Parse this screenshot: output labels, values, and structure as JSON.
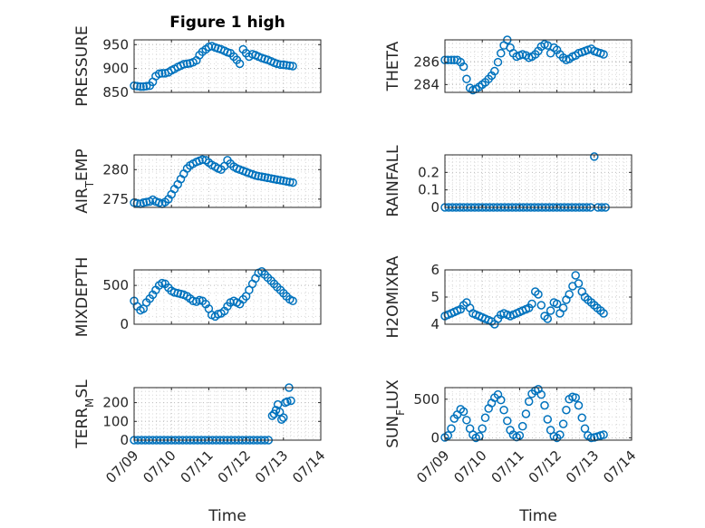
{
  "figure_title": "Figure 1 high",
  "colors": {
    "series": "#0072BD",
    "axes": "#262626",
    "grid": "#bfbfbf"
  },
  "chart_data": [
    {
      "type": "scatter",
      "id": "pressure",
      "title": "Figure 1 high",
      "ylabel": "PRESSURE",
      "xlabel": "",
      "xlim": [
        0,
        5
      ],
      "xticks": [
        0,
        1,
        2,
        3,
        4,
        5
      ],
      "xticklabels": [],
      "ylim": [
        850,
        960
      ],
      "yticks": [
        850,
        900,
        950
      ],
      "yticklabels": [
        "850",
        "900",
        "950"
      ],
      "grid": true,
      "x": [
        0.0,
        0.08,
        0.17,
        0.25,
        0.33,
        0.42,
        0.5,
        0.58,
        0.67,
        0.75,
        0.83,
        0.92,
        1.0,
        1.08,
        1.17,
        1.25,
        1.33,
        1.42,
        1.5,
        1.58,
        1.67,
        1.75,
        1.83,
        1.92,
        2.0,
        2.08,
        2.17,
        2.25,
        2.33,
        2.42,
        2.5,
        2.58,
        2.67,
        2.75,
        2.83,
        2.92,
        3.0,
        3.08,
        3.17,
        3.25,
        3.33,
        3.42,
        3.5,
        3.58,
        3.67,
        3.75,
        3.83,
        3.92,
        4.0,
        4.08,
        4.17,
        4.25
      ],
      "y": [
        864,
        863,
        862,
        862,
        863,
        864,
        872,
        884,
        889,
        890,
        890,
        892,
        896,
        899,
        903,
        906,
        909,
        910,
        911,
        913,
        917,
        928,
        935,
        940,
        945,
        947,
        944,
        942,
        940,
        937,
        934,
        932,
        925,
        918,
        910,
        940,
        932,
        925,
        930,
        928,
        925,
        922,
        920,
        918,
        915,
        912,
        910,
        908,
        908,
        907,
        906,
        905
      ]
    },
    {
      "type": "scatter",
      "id": "theta",
      "ylabel": "THETA",
      "xlabel": "",
      "xlim": [
        0,
        5
      ],
      "xticks": [
        0,
        1,
        2,
        3,
        4,
        5
      ],
      "xticklabels": [],
      "ylim": [
        283.3,
        288.0
      ],
      "yticks": [
        284,
        286
      ],
      "yticklabels": [
        "284",
        "286"
      ],
      "grid": true,
      "x": [
        0.0,
        0.08,
        0.17,
        0.25,
        0.33,
        0.42,
        0.5,
        0.58,
        0.67,
        0.75,
        0.83,
        0.92,
        1.0,
        1.08,
        1.17,
        1.25,
        1.33,
        1.42,
        1.5,
        1.58,
        1.67,
        1.75,
        1.83,
        1.92,
        2.0,
        2.08,
        2.17,
        2.25,
        2.33,
        2.42,
        2.5,
        2.58,
        2.67,
        2.75,
        2.83,
        2.92,
        3.0,
        3.08,
        3.17,
        3.25,
        3.33,
        3.42,
        3.5,
        3.58,
        3.67,
        3.75,
        3.83,
        3.92,
        4.0,
        4.08,
        4.17,
        4.25
      ],
      "y": [
        286.2,
        286.2,
        286.2,
        286.2,
        286.2,
        286.0,
        285.6,
        284.5,
        283.7,
        283.5,
        283.6,
        283.8,
        284.0,
        284.2,
        284.5,
        284.8,
        285.2,
        286.0,
        286.8,
        287.5,
        288.0,
        287.3,
        286.8,
        286.5,
        286.6,
        286.7,
        286.6,
        286.4,
        286.5,
        286.7,
        287.0,
        287.4,
        287.6,
        287.5,
        286.8,
        287.3,
        287.1,
        286.7,
        286.4,
        286.2,
        286.3,
        286.5,
        286.6,
        286.8,
        286.9,
        287.0,
        287.1,
        287.2,
        287.0,
        286.9,
        286.8,
        286.7
      ]
    },
    {
      "type": "scatter",
      "id": "air_temp",
      "ylabel": "AIR_TEMP",
      "ylabel_main": "AIR",
      "ylabel_sub": "T",
      "ylabel_rest": "EMP",
      "xlabel": "",
      "xlim": [
        0,
        5
      ],
      "xticks": [
        0,
        1,
        2,
        3,
        4,
        5
      ],
      "xticklabels": [],
      "ylim": [
        273.6,
        282.5
      ],
      "yticks": [
        275,
        280
      ],
      "yticklabels": [
        "275",
        "280"
      ],
      "grid": true,
      "x": [
        0.0,
        0.08,
        0.17,
        0.25,
        0.33,
        0.42,
        0.5,
        0.58,
        0.67,
        0.75,
        0.83,
        0.92,
        1.0,
        1.08,
        1.17,
        1.25,
        1.33,
        1.42,
        1.5,
        1.58,
        1.67,
        1.75,
        1.83,
        1.92,
        2.0,
        2.08,
        2.17,
        2.25,
        2.33,
        2.42,
        2.5,
        2.58,
        2.67,
        2.75,
        2.83,
        2.92,
        3.0,
        3.08,
        3.17,
        3.25,
        3.33,
        3.42,
        3.5,
        3.58,
        3.67,
        3.75,
        3.83,
        3.92,
        4.0,
        4.08,
        4.17,
        4.25
      ],
      "y": [
        274.4,
        274.3,
        274.2,
        274.4,
        274.5,
        274.6,
        274.9,
        274.6,
        274.4,
        274.2,
        274.5,
        275.0,
        275.8,
        276.7,
        277.5,
        278.4,
        279.3,
        280.2,
        280.7,
        281.0,
        281.3,
        281.5,
        281.7,
        281.6,
        281.2,
        280.8,
        280.5,
        280.2,
        280.0,
        280.6,
        281.6,
        281.0,
        280.5,
        280.2,
        280.0,
        279.8,
        279.6,
        279.4,
        279.2,
        279.0,
        278.9,
        278.8,
        278.7,
        278.6,
        278.5,
        278.4,
        278.3,
        278.2,
        278.1,
        278.0,
        277.9,
        277.8
      ]
    },
    {
      "type": "scatter",
      "id": "rainfall",
      "ylabel": "RAINFALL",
      "xlabel": "",
      "xlim": [
        0,
        5
      ],
      "xticks": [
        0,
        1,
        2,
        3,
        4,
        5
      ],
      "xticklabels": [],
      "ylim": [
        0,
        0.3
      ],
      "yticks": [
        0,
        0.1,
        0.2
      ],
      "yticklabels": [
        "0",
        "0.1",
        "0.2"
      ],
      "grid": true,
      "x": [
        0.0,
        0.1,
        0.2,
        0.3,
        0.4,
        0.5,
        0.6,
        0.7,
        0.8,
        0.9,
        1.0,
        1.1,
        1.2,
        1.3,
        1.4,
        1.5,
        1.6,
        1.7,
        1.8,
        1.9,
        2.0,
        2.1,
        2.2,
        2.3,
        2.4,
        2.5,
        2.6,
        2.7,
        2.8,
        2.9,
        3.0,
        3.1,
        3.2,
        3.3,
        3.4,
        3.5,
        3.6,
        3.7,
        3.8,
        3.9,
        4.0,
        4.1,
        4.2,
        4.3
      ],
      "y": [
        0,
        0,
        0,
        0,
        0,
        0,
        0,
        0,
        0,
        0,
        0,
        0,
        0,
        0,
        0,
        0,
        0,
        0,
        0,
        0,
        0,
        0,
        0,
        0,
        0,
        0,
        0,
        0,
        0,
        0,
        0,
        0,
        0,
        0,
        0,
        0,
        0,
        0,
        0,
        0,
        0.29,
        0,
        0,
        0
      ]
    },
    {
      "type": "scatter",
      "id": "mixdepth",
      "ylabel": "MIXDEPTH",
      "xlabel": "",
      "xlim": [
        0,
        5
      ],
      "xticks": [
        0,
        1,
        2,
        3,
        4,
        5
      ],
      "xticklabels": [],
      "ylim": [
        0,
        700
      ],
      "yticks": [
        0,
        500
      ],
      "yticklabels": [
        "0",
        "500"
      ],
      "grid": true,
      "x": [
        0.0,
        0.08,
        0.17,
        0.25,
        0.33,
        0.42,
        0.5,
        0.58,
        0.67,
        0.75,
        0.83,
        0.92,
        1.0,
        1.08,
        1.17,
        1.25,
        1.33,
        1.42,
        1.5,
        1.58,
        1.67,
        1.75,
        1.83,
        1.92,
        2.0,
        2.08,
        2.17,
        2.25,
        2.33,
        2.42,
        2.5,
        2.58,
        2.67,
        2.75,
        2.83,
        2.92,
        3.0,
        3.08,
        3.17,
        3.25,
        3.33,
        3.42,
        3.5,
        3.58,
        3.67,
        3.75,
        3.83,
        3.92,
        4.0,
        4.08,
        4.17,
        4.25
      ],
      "y": [
        300,
        230,
        180,
        200,
        280,
        330,
        380,
        440,
        500,
        530,
        520,
        470,
        430,
        410,
        400,
        390,
        380,
        360,
        330,
        300,
        290,
        310,
        300,
        260,
        200,
        120,
        100,
        130,
        140,
        170,
        230,
        280,
        300,
        280,
        260,
        320,
        360,
        440,
        520,
        590,
        660,
        680,
        640,
        600,
        560,
        520,
        480,
        440,
        400,
        360,
        320,
        300
      ]
    },
    {
      "type": "scatter",
      "id": "h2omixra",
      "ylabel": "H2OMIXRA",
      "xlabel": "",
      "xlim": [
        0,
        5
      ],
      "xticks": [
        0,
        1,
        2,
        3,
        4,
        5
      ],
      "xticklabels": [],
      "ylim": [
        4,
        6
      ],
      "yticks": [
        4,
        5,
        6
      ],
      "yticklabels": [
        "4",
        "5",
        "6"
      ],
      "grid": true,
      "x": [
        0.0,
        0.08,
        0.17,
        0.25,
        0.33,
        0.42,
        0.5,
        0.58,
        0.67,
        0.75,
        0.83,
        0.92,
        1.0,
        1.08,
        1.17,
        1.25,
        1.33,
        1.42,
        1.5,
        1.58,
        1.67,
        1.75,
        1.83,
        1.92,
        2.0,
        2.08,
        2.17,
        2.25,
        2.33,
        2.42,
        2.5,
        2.58,
        2.67,
        2.75,
        2.83,
        2.92,
        3.0,
        3.08,
        3.17,
        3.25,
        3.33,
        3.42,
        3.5,
        3.58,
        3.67,
        3.75,
        3.83,
        3.92,
        4.0,
        4.08,
        4.17,
        4.25
      ],
      "y": [
        4.3,
        4.35,
        4.4,
        4.45,
        4.5,
        4.55,
        4.7,
        4.8,
        4.6,
        4.4,
        4.35,
        4.3,
        4.25,
        4.2,
        4.15,
        4.1,
        4.0,
        4.2,
        4.35,
        4.4,
        4.35,
        4.3,
        4.35,
        4.4,
        4.45,
        4.5,
        4.55,
        4.6,
        4.75,
        5.2,
        5.1,
        4.7,
        4.3,
        4.2,
        4.5,
        4.8,
        4.75,
        4.4,
        4.6,
        4.9,
        5.1,
        5.4,
        5.8,
        5.5,
        5.2,
        5.0,
        4.9,
        4.8,
        4.7,
        4.6,
        4.5,
        4.4
      ]
    },
    {
      "type": "scatter",
      "id": "terr_msl",
      "ylabel": "TERR_MSL",
      "ylabel_main": "TERR",
      "ylabel_sub": "M",
      "ylabel_rest": "SL",
      "xlabel": "Time",
      "xlim": [
        0,
        5
      ],
      "xticks": [
        0,
        1,
        2,
        3,
        4,
        5
      ],
      "xticklabels": [
        "07/09",
        "07/10",
        "07/11",
        "07/12",
        "07/13",
        "07/14"
      ],
      "ylim": [
        0,
        280
      ],
      "yticks": [
        0,
        100,
        200
      ],
      "yticklabels": [
        "0",
        "100",
        "200"
      ],
      "grid": true,
      "x": [
        0.0,
        0.1,
        0.2,
        0.3,
        0.4,
        0.5,
        0.6,
        0.7,
        0.8,
        0.9,
        1.0,
        1.1,
        1.2,
        1.3,
        1.4,
        1.5,
        1.6,
        1.7,
        1.8,
        1.9,
        2.0,
        2.1,
        2.2,
        2.3,
        2.4,
        2.5,
        2.6,
        2.7,
        2.8,
        2.9,
        3.0,
        3.1,
        3.2,
        3.3,
        3.4,
        3.5,
        3.6,
        3.7,
        3.75,
        3.8,
        3.85,
        3.9,
        3.95,
        4.0,
        4.05,
        4.1,
        4.15,
        4.2
      ],
      "y": [
        0,
        0,
        0,
        0,
        0,
        0,
        0,
        0,
        0,
        0,
        0,
        0,
        0,
        0,
        0,
        0,
        0,
        0,
        0,
        0,
        0,
        0,
        0,
        0,
        0,
        0,
        0,
        0,
        0,
        0,
        0,
        0,
        0,
        0,
        0,
        0,
        0,
        130,
        140,
        160,
        190,
        150,
        110,
        120,
        200,
        205,
        280,
        210
      ]
    },
    {
      "type": "scatter",
      "id": "sun_flux",
      "ylabel": "SUN_FLUX",
      "ylabel_main": "SUN",
      "ylabel_sub": "F",
      "ylabel_rest": "LUX",
      "xlabel": "Time",
      "xlim": [
        0,
        5
      ],
      "xticks": [
        0,
        1,
        2,
        3,
        4,
        5
      ],
      "xticklabels": [
        "07/09",
        "07/10",
        "07/11",
        "07/12",
        "07/13",
        "07/14"
      ],
      "ylim": [
        -30,
        650
      ],
      "yticks": [
        0,
        500
      ],
      "yticklabels": [
        "0",
        "500"
      ],
      "grid": true,
      "x": [
        0.0,
        0.08,
        0.17,
        0.25,
        0.33,
        0.42,
        0.5,
        0.58,
        0.67,
        0.75,
        0.83,
        0.92,
        1.0,
        1.08,
        1.17,
        1.25,
        1.33,
        1.42,
        1.5,
        1.58,
        1.67,
        1.75,
        1.83,
        1.92,
        2.0,
        2.08,
        2.17,
        2.25,
        2.33,
        2.42,
        2.5,
        2.58,
        2.67,
        2.75,
        2.83,
        2.92,
        3.0,
        3.08,
        3.17,
        3.25,
        3.33,
        3.42,
        3.5,
        3.58,
        3.67,
        3.75,
        3.83,
        3.92,
        4.0,
        4.08,
        4.17,
        4.25
      ],
      "y": [
        5,
        30,
        120,
        250,
        300,
        370,
        340,
        230,
        120,
        40,
        0,
        20,
        120,
        260,
        380,
        450,
        520,
        560,
        490,
        360,
        220,
        100,
        40,
        10,
        30,
        150,
        310,
        470,
        570,
        610,
        630,
        560,
        420,
        240,
        100,
        20,
        0,
        40,
        180,
        360,
        500,
        530,
        520,
        420,
        260,
        120,
        30,
        0,
        5,
        15,
        30,
        40
      ]
    }
  ]
}
